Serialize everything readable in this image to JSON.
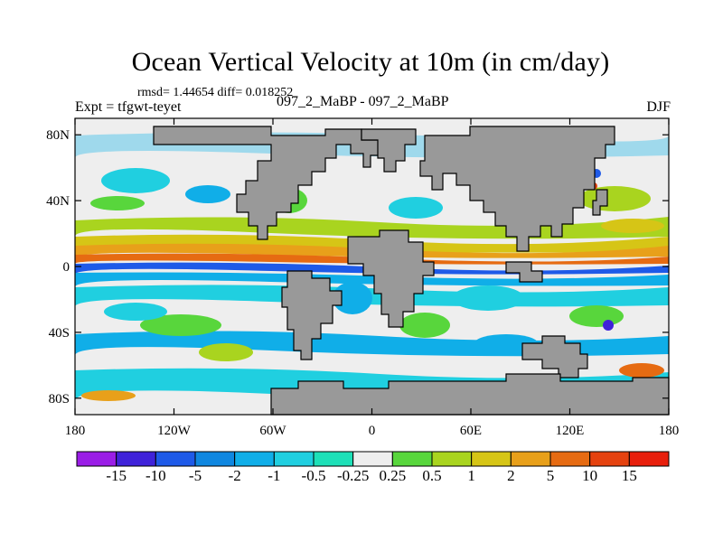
{
  "chart_data": {
    "type": "heatmap",
    "title": "Ocean Vertical Velocity at 10m (in cm/day)",
    "stats": "rmsd= 1.44654 diff= 0.018252",
    "experiment": "Expt = tfgwt-teyet",
    "runs": "097_2_MaBP - 097_2_MaBP",
    "season": "DJF",
    "x_ticks": [
      "180",
      "120W",
      "60W",
      "0",
      "60E",
      "120E",
      "180"
    ],
    "x_tick_lon": [
      -180,
      -120,
      -60,
      0,
      60,
      120,
      180
    ],
    "y_ticks": [
      "80N",
      "40N",
      "0",
      "40S",
      "80S"
    ],
    "y_tick_lat": [
      80,
      40,
      0,
      -40,
      -80
    ],
    "xlim": [
      -180,
      180
    ],
    "ylim": [
      -90,
      90
    ],
    "colorbar": {
      "labels": [
        "-15",
        "-10",
        "-5",
        "-2",
        "-1",
        "-0.5",
        "-0.25",
        "0.25",
        "0.5",
        "1",
        "2",
        "5",
        "10",
        "15"
      ],
      "colors": [
        "#9a1de6",
        "#3f22d9",
        "#1e5ae8",
        "#0f87e0",
        "#10aee8",
        "#20cfe0",
        "#1ee0b8",
        "#eeeeee",
        "#58d63c",
        "#a9d41f",
        "#d6c516",
        "#e8a01a",
        "#e66b12",
        "#e5420f",
        "#e81f0c"
      ]
    },
    "land_color": "#999999"
  }
}
